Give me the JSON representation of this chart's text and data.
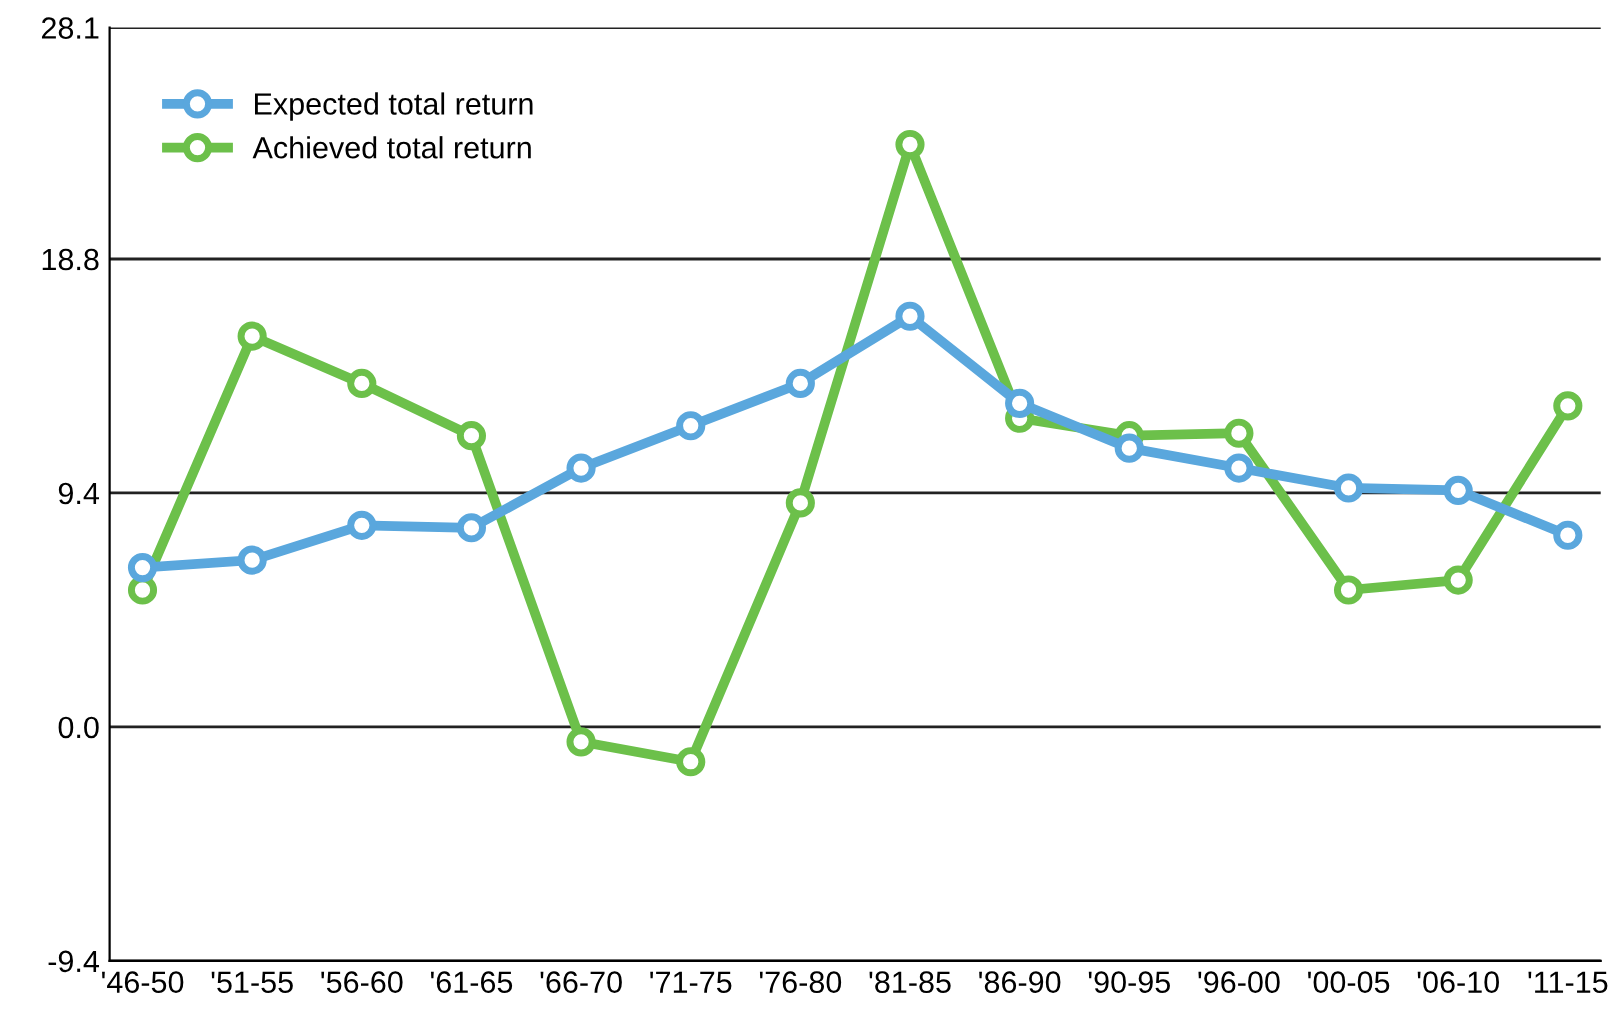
{
  "chart_data": {
    "type": "line",
    "categories": [
      "'46-50",
      "'51-55",
      "'56-60",
      "'61-65",
      "'66-70",
      "'71-75",
      "'76-80",
      "'81-85",
      "'86-90",
      "'90-95",
      "'96-00",
      "'00-05",
      "'06-10",
      "'11-15"
    ],
    "series": [
      {
        "name": "Expected total return",
        "color": "#5aa7dd",
        "values": [
          6.4,
          6.7,
          8.1,
          8.0,
          10.4,
          12.1,
          13.8,
          16.5,
          13.0,
          11.2,
          10.4,
          9.6,
          9.5,
          7.7
        ]
      },
      {
        "name": "Achieved total return",
        "color": "#6cc04a",
        "values": [
          5.5,
          15.7,
          13.8,
          11.7,
          -0.6,
          -1.4,
          9.0,
          23.4,
          12.4,
          11.7,
          11.8,
          5.5,
          5.9,
          12.9
        ]
      }
    ],
    "ylim": [
      -9.4,
      28.1
    ],
    "yticks": [
      -9.4,
      {
        "value": 0,
        "label": "0.0"
      },
      9.4,
      18.8,
      28.1
    ],
    "grid": "y",
    "legend": "top left",
    "marker": "circle",
    "line_style": "solid"
  }
}
